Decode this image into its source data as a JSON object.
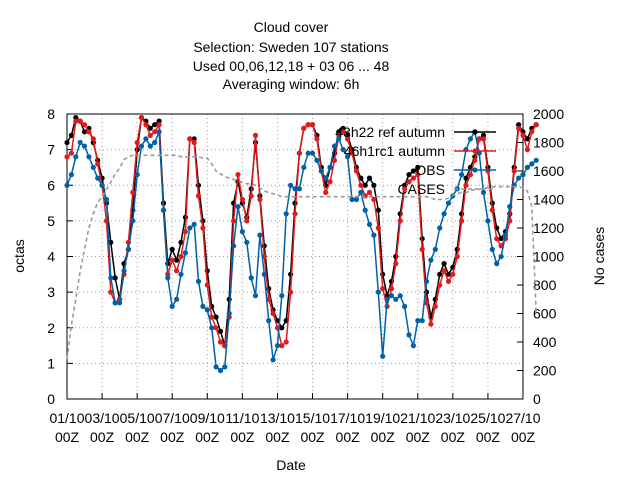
{
  "chart_data": {
    "type": "line",
    "title_lines": [
      "Cloud cover",
      "Selection: Sweden    107 stations",
      "Used  00,06,12,18  + 03 06 ... 48",
      "Averaging window:  6h"
    ],
    "xlabel": "Date",
    "ylabel": "octas",
    "y2label": "No cases",
    "ylim": [
      0,
      8
    ],
    "y2lim": [
      0,
      2000
    ],
    "xlim_days": [
      0,
      26
    ],
    "grid": true,
    "legend_placement": "top-right",
    "y_ticks": [
      "0",
      "1",
      "2",
      "3",
      "4",
      "5",
      "6",
      "7",
      "8"
    ],
    "y2_ticks": [
      "0",
      "200",
      "400",
      "600",
      "800",
      "1000",
      "1200",
      "1400",
      "1600",
      "1800",
      "2000"
    ],
    "x_ticks": [
      {
        "line1": "01/10",
        "line2": "00Z"
      },
      {
        "line1": "03/10",
        "line2": "00Z"
      },
      {
        "line1": "05/10",
        "line2": "00Z"
      },
      {
        "line1": "07/10",
        "line2": "00Z"
      },
      {
        "line1": "09/10",
        "line2": "00Z"
      },
      {
        "line1": "11/10",
        "line2": "00Z"
      },
      {
        "line1": "13/10",
        "line2": "00Z"
      },
      {
        "line1": "15/10",
        "line2": "00Z"
      },
      {
        "line1": "17/10",
        "line2": "00Z"
      },
      {
        "line1": "19/10",
        "line2": "00Z"
      },
      {
        "line1": "21/10",
        "line2": "00Z"
      },
      {
        "line1": "23/10",
        "line2": "00Z"
      },
      {
        "line1": "25/10",
        "line2": "00Z"
      },
      {
        "line1": "27/10",
        "line2": "00Z"
      }
    ],
    "series": [
      {
        "name": "43h22_ref_autumn",
        "legend_label": "43h22 ref autumn",
        "color": "#000000",
        "axis": "y",
        "step_hours": 6,
        "values": [
          7.2,
          7.4,
          7.9,
          7.8,
          7.5,
          7.6,
          7.2,
          6.7,
          6.2,
          5.5,
          4.4,
          3.4,
          2.8,
          3.8,
          4.2,
          5.3,
          7.0,
          7.9,
          7.8,
          7.6,
          7.7,
          7.8,
          5.5,
          3.8,
          4.2,
          3.9,
          4.4,
          5.1,
          7.3,
          7.3,
          6.0,
          5.0,
          3.6,
          2.6,
          2.3,
          1.9,
          1.5,
          2.8,
          5.5,
          6.1,
          5.5,
          5.1,
          5.9,
          7.2,
          5.7,
          4.3,
          3.1,
          2.5,
          2.2,
          2.0,
          2.2,
          3.5,
          5.5,
          6.9,
          7.6,
          7.7,
          7.7,
          7.4,
          6.5,
          6.0,
          6.5,
          6.9,
          7.5,
          7.6,
          7.4,
          7.0,
          6.5,
          6.2,
          6.0,
          6.2,
          6.0,
          5.3,
          3.5,
          2.9,
          3.3,
          4.0,
          5.2,
          6.0,
          6.3,
          6.4,
          6.5,
          4.5,
          3.0,
          2.3,
          2.8,
          3.5,
          3.8,
          3.5,
          3.7,
          4.2,
          5.2,
          6.2,
          6.5,
          6.8,
          7.3,
          7.4,
          6.5,
          5.5,
          4.8,
          4.5,
          4.7,
          5.2,
          6.5,
          7.7,
          7.5,
          7.3,
          7.6,
          7.7
        ]
      },
      {
        "name": "46h1rc1_autumn",
        "legend_label": "46h1rc1 autumn",
        "color": "#e31a1c",
        "axis": "y",
        "step_hours": 6,
        "values": [
          6.8,
          6.9,
          7.8,
          7.8,
          7.7,
          7.5,
          7.3,
          6.6,
          6.0,
          5.0,
          3.0,
          2.7,
          2.8,
          3.5,
          4.4,
          5.8,
          7.2,
          7.9,
          7.7,
          7.4,
          7.5,
          7.7,
          5.3,
          3.5,
          3.9,
          3.6,
          4.0,
          4.7,
          7.3,
          7.2,
          5.7,
          4.8,
          3.2,
          2.3,
          2.0,
          1.6,
          1.5,
          2.3,
          5.0,
          6.3,
          5.6,
          5.0,
          5.7,
          7.4,
          5.6,
          4.0,
          2.8,
          2.4,
          2.0,
          1.5,
          1.6,
          3.0,
          5.2,
          6.9,
          7.6,
          7.7,
          7.7,
          7.3,
          6.4,
          5.8,
          6.1,
          6.7,
          7.4,
          7.5,
          7.3,
          6.9,
          6.4,
          6.0,
          5.7,
          5.8,
          5.6,
          4.8,
          3.1,
          2.6,
          3.1,
          3.8,
          5.0,
          5.9,
          6.1,
          6.2,
          6.3,
          4.2,
          2.7,
          2.1,
          2.6,
          3.2,
          3.6,
          3.3,
          3.5,
          4.0,
          5.0,
          6.0,
          6.3,
          6.7,
          7.3,
          7.3,
          6.4,
          5.3,
          4.5,
          4.3,
          4.5,
          5.0,
          6.4,
          7.6,
          7.4,
          7.0,
          7.5,
          7.7
        ]
      },
      {
        "name": "OBS",
        "legend_label": "OBS",
        "color": "#0060a8",
        "axis": "y",
        "step_hours": 6,
        "values": [
          6.0,
          6.3,
          6.8,
          7.2,
          7.1,
          6.8,
          6.5,
          6.2,
          6.0,
          5.6,
          3.4,
          2.7,
          2.7,
          3.6,
          4.2,
          5.0,
          6.3,
          7.1,
          7.3,
          7.1,
          7.2,
          7.5,
          5.3,
          3.4,
          2.6,
          2.8,
          3.5,
          4.1,
          4.8,
          4.9,
          3.3,
          2.6,
          2.5,
          2.0,
          0.9,
          0.8,
          0.9,
          2.4,
          4.3,
          5.4,
          4.7,
          4.4,
          3.4,
          2.9,
          4.6,
          3.5,
          2.2,
          1.1,
          1.5,
          2.9,
          5.2,
          6.0,
          5.9,
          5.9,
          6.5,
          6.9,
          6.9,
          6.7,
          6.4,
          6.2,
          6.5,
          7.1,
          7.3,
          7.0,
          6.8,
          5.6,
          5.6,
          5.8,
          5.3,
          4.9,
          4.6,
          3.0,
          1.2,
          2.8,
          2.9,
          2.8,
          2.9,
          2.6,
          1.8,
          1.5,
          2.2,
          2.2,
          3.3,
          3.9,
          4.2,
          4.8,
          5.2,
          5.5,
          5.7,
          5.9,
          6.3,
          7.0,
          7.3,
          7.5,
          6.9,
          5.8,
          5.0,
          4.2,
          3.8,
          4.0,
          4.6,
          5.4,
          6.0,
          6.2,
          6.3,
          6.5,
          6.6,
          6.7
        ]
      },
      {
        "name": "CASES",
        "legend_label": "CASES",
        "color": "#9a9a9a",
        "axis": "y2",
        "step_hours": 6,
        "values": [
          280,
          520,
          700,
          900,
          1050,
          1200,
          1300,
          1380,
          1420,
          1470,
          1520,
          1580,
          1620,
          1680,
          1700,
          1710,
          1710,
          1710,
          1710,
          1710,
          1710,
          1710,
          1710,
          1710,
          1710,
          1710,
          1700,
          1700,
          1700,
          1700,
          1700,
          1690,
          1690,
          1650,
          1600,
          1580,
          1560,
          1550,
          1540,
          1530,
          1520,
          1510,
          1510,
          1500,
          1480,
          1460,
          1450,
          1440,
          1430,
          1420,
          1420,
          1420,
          1420,
          1420,
          1420,
          1420,
          1420,
          1420,
          1420,
          1420,
          1420,
          1420,
          1420,
          1420,
          1420,
          1420,
          1420,
          1420,
          1420,
          1420,
          1420,
          1420,
          1420,
          1420,
          1420,
          1420,
          1420,
          1420,
          1420,
          1420,
          1420,
          1420,
          1420,
          1410,
          1400,
          1400,
          1400,
          1410,
          1430,
          1440,
          1450,
          1450,
          1460,
          1470,
          1470,
          1480,
          1480,
          1490,
          1490,
          1490,
          1490,
          1490,
          1490,
          1490,
          1480,
          1460,
          1350,
          600
        ]
      }
    ]
  }
}
